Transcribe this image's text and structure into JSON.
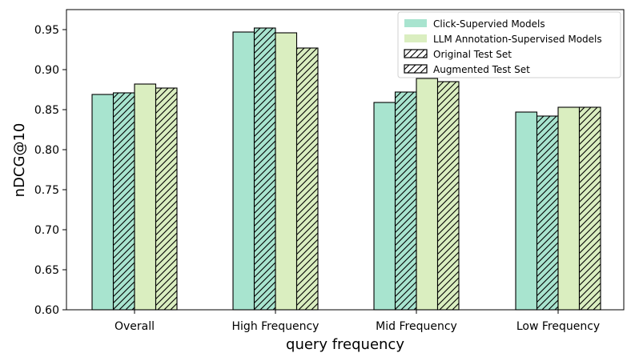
{
  "chart_data": {
    "type": "bar",
    "xlabel": "query frequency",
    "ylabel": "nDCG@10",
    "ylim": [
      0.6,
      0.975
    ],
    "yticks": [
      0.6,
      0.65,
      0.7,
      0.75,
      0.8,
      0.85,
      0.9,
      0.95
    ],
    "categories": [
      "Overall",
      "High Frequency",
      "Mid Frequency",
      "Low Frequency"
    ],
    "series": [
      {
        "name": "Click-Supervied Models / Original Test Set",
        "model": "click",
        "testset": "original",
        "values": [
          0.869,
          0.947,
          0.859,
          0.847
        ]
      },
      {
        "name": "Click-Supervied Models / Augmented Test Set",
        "model": "click",
        "testset": "augmented",
        "values": [
          0.871,
          0.952,
          0.872,
          0.842
        ]
      },
      {
        "name": "LLM Annotation-Supervised Models / Original Test Set",
        "model": "llm",
        "testset": "original",
        "values": [
          0.882,
          0.946,
          0.889,
          0.853
        ]
      },
      {
        "name": "LLM Annotation-Supervised Models / Augmented Test Set",
        "model": "llm",
        "testset": "augmented",
        "values": [
          0.877,
          0.927,
          0.885,
          0.853
        ]
      }
    ],
    "legend": {
      "placement": "top-right",
      "entries": [
        {
          "label": "Click-Supervied Models",
          "kind": "solid",
          "color": "#a8e4cf"
        },
        {
          "label": "LLM Annotation-Supervised Models",
          "kind": "solid",
          "color": "#daeec0"
        },
        {
          "label": "Original Test Set",
          "kind": "hatch",
          "color": "#ffffff"
        },
        {
          "label": "Augmented Test Set",
          "kind": "hatch",
          "color": "#ffffff"
        }
      ]
    },
    "colors": {
      "click": "#a8e4cf",
      "llm": "#daeec0",
      "edge": "#000000"
    },
    "grid": false
  }
}
